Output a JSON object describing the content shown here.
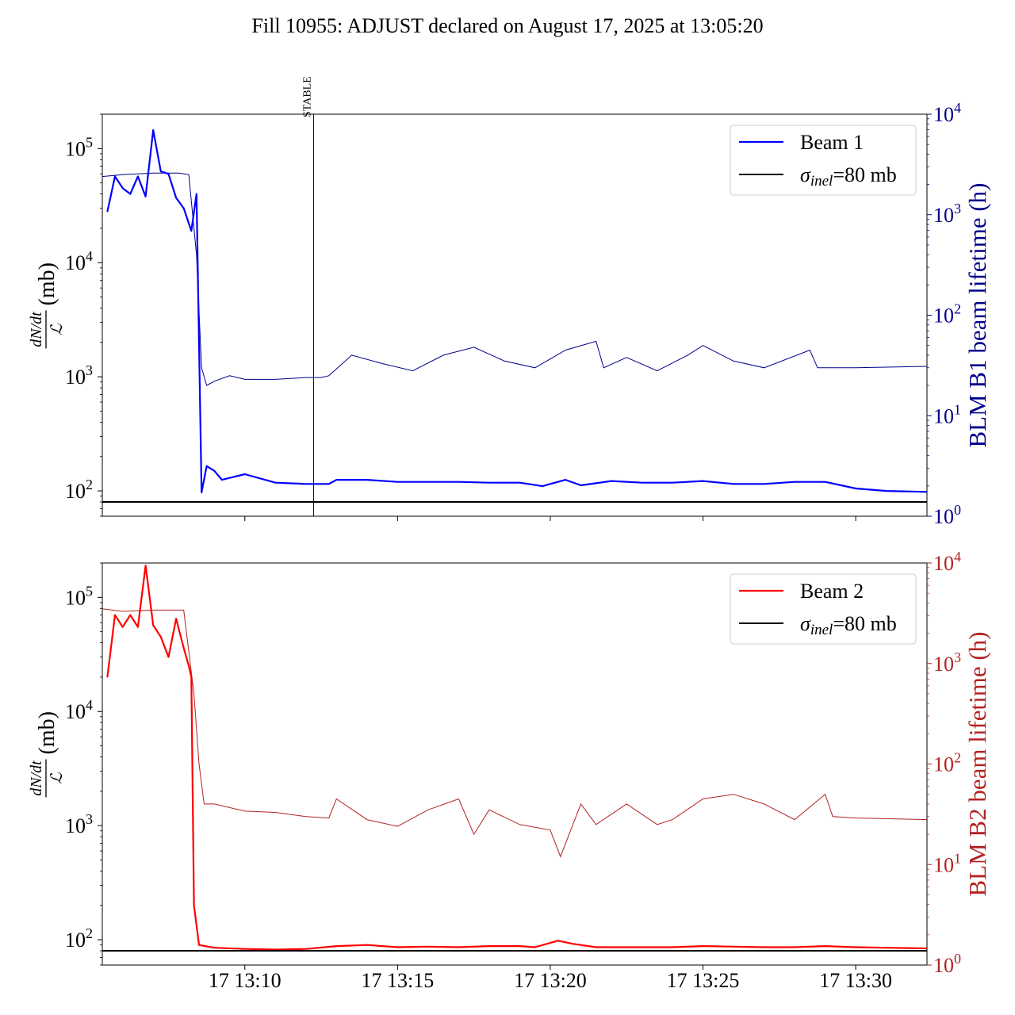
{
  "title": "Fill 10955: ADJUST declared on August 17, 2025 at 13:05:20",
  "colors": {
    "beam1": "#0000ff",
    "beam1_lifetime": "#00008b",
    "beam2": "#ff0000",
    "beam2_lifetime": "#b22222",
    "sigma": "#000000"
  },
  "chart_data": [
    {
      "type": "line",
      "panel": "top",
      "ylabel": "dN/dt / ℒ (mb)",
      "y2label": "BLM B1 beam lifetime (h)",
      "yscale": "log",
      "ylim": [
        60,
        200000
      ],
      "y2scale": "log",
      "y2lim": [
        1,
        10000
      ],
      "xlim": [
        "13:05:20",
        "13:32:20"
      ],
      "x_ticks": [
        "17 13:10",
        "17 13:15",
        "17 13:20",
        "17 13:25",
        "17 13:30"
      ],
      "y_ticks": [
        "10^2",
        "10^3",
        "10^4",
        "10^5"
      ],
      "y2_ticks": [
        "10^0",
        "10^1",
        "10^2",
        "10^3",
        "10^4"
      ],
      "annotation": {
        "text": "STABLE",
        "x": "13:12:15"
      },
      "legend": {
        "placement": "top-right",
        "entries": [
          "Beam 1",
          "σinel=80 mb"
        ]
      },
      "hline": {
        "value": 80,
        "label": "σinel=80 mb"
      },
      "series": [
        {
          "name": "Beam 1",
          "axis": "left",
          "x": [
            "13:05:30",
            "13:05:45",
            "13:06:00",
            "13:06:15",
            "13:06:30",
            "13:06:45",
            "13:07:00",
            "13:07:15",
            "13:07:30",
            "13:07:45",
            "13:08:00",
            "13:08:15",
            "13:08:25",
            "13:08:35",
            "13:08:45",
            "13:09:00",
            "13:09:15",
            "13:09:30",
            "13:10:00",
            "13:11:00",
            "13:12:00",
            "13:12:45",
            "13:13:00",
            "13:14:00",
            "13:15:00",
            "13:16:00",
            "13:17:00",
            "13:18:00",
            "13:19:00",
            "13:19:45",
            "13:20:00",
            "13:20:30",
            "13:21:00",
            "13:22:00",
            "13:23:00",
            "13:24:00",
            "13:25:00",
            "13:26:00",
            "13:27:00",
            "13:28:00",
            "13:29:00",
            "13:30:00",
            "13:31:00",
            "13:32:20"
          ],
          "values": [
            28000,
            57000,
            45000,
            40000,
            57000,
            38000,
            145000,
            63000,
            60000,
            37000,
            30000,
            19000,
            40000,
            97,
            165,
            150,
            125,
            130,
            140,
            118,
            115,
            115,
            125,
            125,
            120,
            120,
            120,
            118,
            118,
            110,
            115,
            125,
            112,
            122,
            118,
            118,
            122,
            115,
            115,
            120,
            120,
            105,
            100,
            98
          ]
        },
        {
          "name": "BLM B1 beam lifetime",
          "axis": "right",
          "x": [
            "13:05:20",
            "13:06:00",
            "13:07:00",
            "13:07:50",
            "13:08:10",
            "13:08:25",
            "13:08:35",
            "13:08:45",
            "13:09:00",
            "13:09:30",
            "13:10:00",
            "13:11:00",
            "13:12:00",
            "13:12:30",
            "13:12:45",
            "13:13:30",
            "13:14:30",
            "13:15:30",
            "13:16:30",
            "13:17:30",
            "13:18:30",
            "13:19:30",
            "13:20:30",
            "13:21:30",
            "13:21:45",
            "13:22:30",
            "13:23:30",
            "13:24:30",
            "13:25:00",
            "13:26:00",
            "13:27:00",
            "13:28:30",
            "13:28:45",
            "13:30:00",
            "13:32:20"
          ],
          "values": [
            2400,
            2500,
            2600,
            2600,
            2500,
            400,
            30,
            20,
            22,
            25,
            23,
            23,
            24,
            24,
            25,
            40,
            33,
            28,
            40,
            48,
            35,
            30,
            45,
            55,
            30,
            38,
            28,
            40,
            50,
            35,
            30,
            45,
            30,
            30,
            31
          ]
        }
      ]
    },
    {
      "type": "line",
      "panel": "bottom",
      "ylabel": "dN/dt / ℒ (mb)",
      "y2label": "BLM B2 beam lifetime (h)",
      "yscale": "log",
      "ylim": [
        60,
        200000
      ],
      "y2scale": "log",
      "y2lim": [
        1,
        10000
      ],
      "xlim": [
        "13:05:20",
        "13:32:20"
      ],
      "x_ticks": [
        "17 13:10",
        "17 13:15",
        "17 13:20",
        "17 13:25",
        "17 13:30"
      ],
      "y_ticks": [
        "10^2",
        "10^3",
        "10^4",
        "10^5"
      ],
      "y2_ticks": [
        "10^0",
        "10^1",
        "10^2",
        "10^3",
        "10^4"
      ],
      "legend": {
        "placement": "top-right",
        "entries": [
          "Beam 2",
          "σinel=80 mb"
        ]
      },
      "hline": {
        "value": 80,
        "label": "σinel=80 mb"
      },
      "series": [
        {
          "name": "Beam 2",
          "axis": "left",
          "x": [
            "13:05:30",
            "13:05:45",
            "13:06:00",
            "13:06:15",
            "13:06:30",
            "13:06:45",
            "13:07:00",
            "13:07:15",
            "13:07:30",
            "13:07:45",
            "13:08:00",
            "13:08:10",
            "13:08:15",
            "13:08:20",
            "13:08:30",
            "13:09:00",
            "13:10:00",
            "13:11:00",
            "13:12:00",
            "13:13:00",
            "13:14:00",
            "13:15:00",
            "13:16:00",
            "13:17:00",
            "13:18:00",
            "13:19:00",
            "13:19:30",
            "13:20:15",
            "13:20:45",
            "13:21:30",
            "13:22:00",
            "13:23:00",
            "13:24:00",
            "13:25:00",
            "13:26:00",
            "13:27:00",
            "13:28:00",
            "13:29:00",
            "13:30:00",
            "13:31:00",
            "13:32:20"
          ],
          "values": [
            20000,
            70000,
            55000,
            70000,
            55000,
            190000,
            57000,
            45000,
            30000,
            65000,
            36000,
            25000,
            20000,
            200,
            90,
            85,
            83,
            82,
            83,
            88,
            90,
            86,
            87,
            86,
            88,
            88,
            86,
            98,
            92,
            86,
            86,
            86,
            86,
            88,
            87,
            86,
            86,
            88,
            86,
            85,
            84
          ]
        },
        {
          "name": "BLM B2 beam lifetime",
          "axis": "right",
          "x": [
            "13:05:20",
            "13:06:00",
            "13:07:00",
            "13:08:00",
            "13:08:20",
            "13:08:30",
            "13:08:40",
            "13:09:00",
            "13:10:00",
            "13:11:00",
            "13:12:00",
            "13:12:45",
            "13:13:00",
            "13:14:00",
            "13:15:00",
            "13:16:00",
            "13:17:00",
            "13:17:30",
            "13:18:00",
            "13:19:00",
            "13:20:00",
            "13:20:20",
            "13:21:00",
            "13:21:30",
            "13:22:30",
            "13:23:30",
            "13:24:00",
            "13:25:00",
            "13:26:00",
            "13:27:00",
            "13:28:00",
            "13:29:00",
            "13:29:15",
            "13:30:00",
            "13:32:20"
          ],
          "values": [
            3500,
            3300,
            3400,
            3400,
            500,
            100,
            40,
            40,
            34,
            33,
            30,
            29,
            45,
            28,
            24,
            35,
            45,
            20,
            35,
            25,
            22,
            12,
            40,
            25,
            40,
            25,
            28,
            45,
            50,
            40,
            28,
            50,
            30,
            29,
            28
          ]
        }
      ]
    }
  ]
}
